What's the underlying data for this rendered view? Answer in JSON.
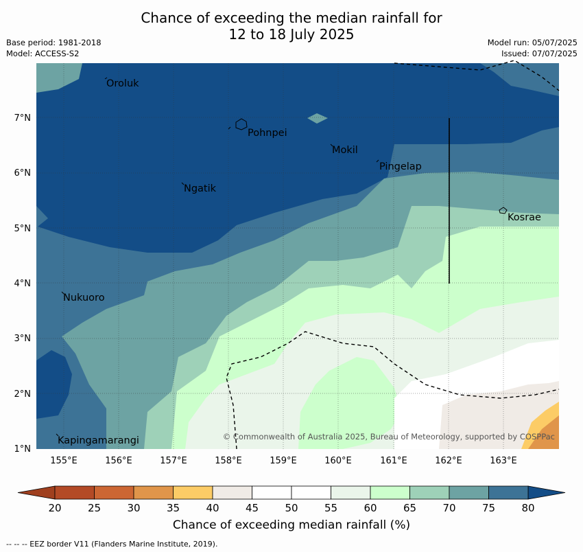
{
  "title": {
    "line1": "Chance of exceeding the median rainfall for",
    "line2": "12 to 18 July 2025"
  },
  "meta": {
    "base_period": "Base period: 1981-2018",
    "model": "Model: ACCESS-S2",
    "model_run": "Model run: 05/07/2025",
    "issued": "Issued: 07/07/2025"
  },
  "map": {
    "lon_labels": [
      "155°E",
      "156°E",
      "157°E",
      "158°E",
      "159°E",
      "160°E",
      "161°E",
      "162°E",
      "163°E"
    ],
    "lat_labels": [
      "1°N",
      "2°N",
      "3°N",
      "4°N",
      "5°N",
      "6°N",
      "7°N"
    ],
    "places": [
      "Oroluk",
      "Pohnpei",
      "Mokil",
      "Pingelap",
      "Ngatik",
      "Kosrae",
      "Nukuoro",
      "Kapingamarangi"
    ],
    "copyright": "© Commonwealth of Australia 2025, Bureau of Meteorology, supported by COSPPac"
  },
  "colorbar": {
    "ticks": [
      "20",
      "25",
      "30",
      "35",
      "40",
      "45",
      "50",
      "55",
      "60",
      "65",
      "70",
      "75",
      "80"
    ],
    "colors": [
      "#b34a26",
      "#cc6633",
      "#e0954a",
      "#fccc66",
      "#f0ebe6",
      "#ffffff",
      "#ffffff",
      "#eaf5ea",
      "#ccffcc",
      "#9ed1b8",
      "#6da3a3",
      "#3d7396"
    ],
    "low_color": "#a0401f",
    "high_color": "#134d87",
    "label": "Chance of exceeding median rainfall (%)"
  },
  "footer": "--  --  -- EEZ border V11 (Flanders Marine Institute, 2019)."
}
